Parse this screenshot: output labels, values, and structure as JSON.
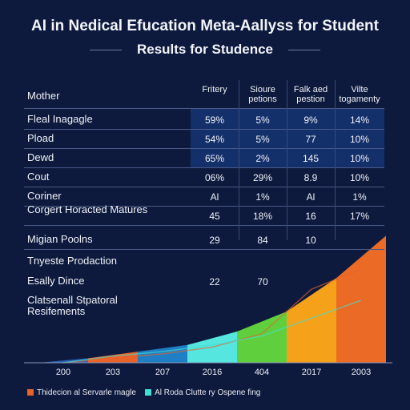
{
  "title_line1": "AI in Nedical Efucation Meta-Aallyss for Student",
  "title_line2": "Results for Studence",
  "table": {
    "headers": [
      "Mother",
      "Fritery",
      "Sioure petions",
      "Falk aed pestion",
      "Vilte togamenty"
    ],
    "rows": [
      {
        "label": "Fleal Inagagle",
        "cells": [
          "59%",
          "5%",
          "9%",
          "14%"
        ]
      },
      {
        "label": "Pload",
        "cells": [
          "54%",
          "5%",
          "77",
          "10%"
        ]
      },
      {
        "label": "Dewd",
        "cells": [
          "65%",
          "2%",
          "145",
          "10%"
        ]
      },
      {
        "label": "Cout",
        "cells": [
          "06%",
          "29%",
          "8.9",
          "10%"
        ]
      },
      {
        "label": "Coriner",
        "cells": [
          "Al",
          "1%",
          "Al",
          "1%"
        ]
      },
      {
        "label": "Corgert Horacted Matures",
        "cells": [
          "45",
          "18%",
          "16",
          "17%"
        ]
      },
      {
        "label": "Migian Poolns",
        "cells": [
          "29",
          "84",
          "10",
          ""
        ]
      },
      {
        "label": "Tnyeste Prodaction",
        "cells": [
          "",
          "",
          "",
          ""
        ]
      },
      {
        "label": "Esally Dince",
        "cells": [
          "22",
          "70",
          "",
          ""
        ]
      },
      {
        "label": "Clatsenall Stpatoral Resifements",
        "cells": [
          "",
          "",
          "",
          ""
        ]
      }
    ]
  },
  "chart_data": {
    "type": "area",
    "categories": [
      "200",
      "203",
      "207",
      "2016",
      "404",
      "2017",
      "2003"
    ],
    "series": [
      {
        "name": "Thidecion al Servarle magle",
        "color": "#e8622a",
        "values": [
          0,
          2,
          4,
          7,
          13,
          33,
          42
        ]
      },
      {
        "name": "Al Roda Clutte ry Ospene fing",
        "color": "#3fe0d0",
        "values": [
          0,
          3,
          5,
          8,
          12,
          20,
          28
        ]
      }
    ],
    "band_colors": [
      "#2a63b8",
      "#e8622a",
      "#1f7fc4",
      "#55e6e0",
      "#5fcf3e",
      "#f5a21a",
      "#ea6a26"
    ],
    "band_heights": [
      2,
      5,
      8,
      14,
      23,
      38,
      57
    ],
    "ylim": [
      0,
      60
    ]
  },
  "legend": [
    {
      "label": "Thidecion al Servarle magle",
      "color": "#e8622a"
    },
    {
      "label": "Al Roda Clutte ry Ospene fing",
      "color": "#3fe0d0"
    }
  ]
}
